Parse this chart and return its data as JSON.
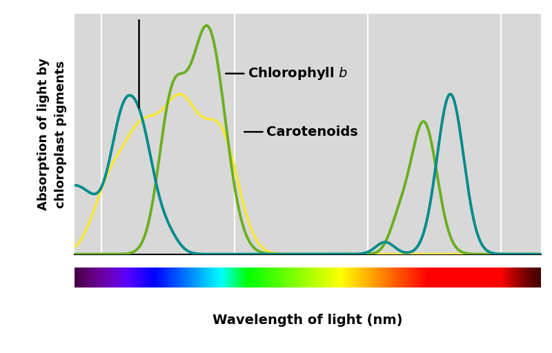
{
  "xlim": [
    380,
    730
  ],
  "ylim": [
    0,
    1.05
  ],
  "background_color": "#d8d8d8",
  "ylabel": "Absorption of light by\nchloroplast pigments",
  "xlabel": "Wavelength of light (nm)",
  "xticks": [
    400,
    500,
    600,
    700
  ],
  "chl_a_color": "#008B8B",
  "chl_b_color": "#6AAF20",
  "carot_color": "#F5E642",
  "label_fontsize": 13,
  "tick_fontsize": 14,
  "annotation_fontsize": 14
}
